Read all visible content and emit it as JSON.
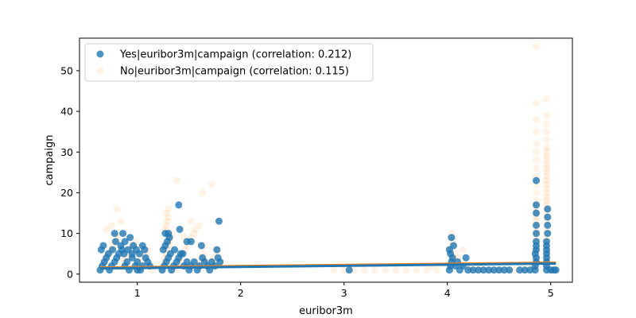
{
  "chart_data": {
    "type": "scatter",
    "xlabel": "euribor3m",
    "ylabel": "campaign",
    "xlim": [
      0.44,
      5.21
    ],
    "ylim": [
      -2.0,
      58.0
    ],
    "x_ticks": [
      1,
      2,
      3,
      4,
      5
    ],
    "y_ticks": [
      0,
      10,
      20,
      30,
      40,
      50
    ],
    "legend_position": "top-left",
    "grid": false,
    "series": [
      {
        "name": "Yes|euribor3m|campaign (correlation: 0.212)",
        "color": "#1f77b4",
        "opacity": 0.8,
        "points": [
          [
            0.64,
            1
          ],
          [
            0.66,
            2
          ],
          [
            0.68,
            3
          ],
          [
            0.7,
            4
          ],
          [
            0.72,
            5
          ],
          [
            0.65,
            6
          ],
          [
            0.67,
            7
          ],
          [
            0.73,
            1
          ],
          [
            0.75,
            2
          ],
          [
            0.78,
            3
          ],
          [
            0.8,
            4
          ],
          [
            0.82,
            5
          ],
          [
            0.85,
            6
          ],
          [
            0.88,
            2
          ],
          [
            0.9,
            3
          ],
          [
            0.92,
            1
          ],
          [
            0.95,
            4
          ],
          [
            0.98,
            2
          ],
          [
            1.0,
            3
          ],
          [
            1.03,
            1
          ],
          [
            1.05,
            2
          ],
          [
            1.08,
            4
          ],
          [
            0.76,
            6
          ],
          [
            0.79,
            8
          ],
          [
            0.84,
            7
          ],
          [
            0.87,
            5
          ],
          [
            0.91,
            6
          ],
          [
            0.95,
            5
          ],
          [
            0.78,
            10
          ],
          [
            0.86,
            10
          ],
          [
            0.88,
            8
          ],
          [
            0.93,
            9
          ],
          [
            0.96,
            7
          ],
          [
            0.99,
            6
          ],
          [
            1.02,
            5
          ],
          [
            1.05,
            7
          ],
          [
            1.07,
            6
          ],
          [
            1.1,
            3
          ],
          [
            1.12,
            2
          ],
          [
            1.0,
            1
          ],
          [
            1.24,
            1
          ],
          [
            1.26,
            2
          ],
          [
            1.28,
            3
          ],
          [
            1.3,
            4
          ],
          [
            1.32,
            5
          ],
          [
            1.25,
            6
          ],
          [
            1.27,
            7
          ],
          [
            1.29,
            8
          ],
          [
            1.31,
            9
          ],
          [
            1.27,
            10
          ],
          [
            1.33,
            1
          ],
          [
            1.35,
            2
          ],
          [
            1.38,
            3
          ],
          [
            1.4,
            4
          ],
          [
            1.42,
            5
          ],
          [
            1.45,
            2
          ],
          [
            1.48,
            3
          ],
          [
            1.5,
            1
          ],
          [
            1.52,
            2
          ],
          [
            1.55,
            3
          ],
          [
            1.58,
            1
          ],
          [
            1.6,
            2
          ],
          [
            1.63,
            4
          ],
          [
            1.65,
            3
          ],
          [
            1.68,
            2
          ],
          [
            1.7,
            1
          ],
          [
            1.72,
            3
          ],
          [
            1.75,
            2
          ],
          [
            1.78,
            4
          ],
          [
            1.8,
            3
          ],
          [
            1.4,
            17
          ],
          [
            1.41,
            11
          ],
          [
            1.48,
            8
          ],
          [
            1.52,
            8
          ],
          [
            1.79,
            13
          ],
          [
            1.77,
            6
          ],
          [
            1.62,
            7
          ],
          [
            1.3,
            10
          ],
          [
            1.36,
            6
          ],
          [
            1.44,
            5
          ],
          [
            3.05,
            1
          ],
          [
            4.02,
            1
          ],
          [
            4.03,
            2
          ],
          [
            4.04,
            3
          ],
          [
            4.05,
            4
          ],
          [
            4.03,
            5
          ],
          [
            4.02,
            6
          ],
          [
            4.04,
            9
          ],
          [
            4.06,
            7
          ],
          [
            4.08,
            2
          ],
          [
            4.1,
            3
          ],
          [
            4.12,
            1
          ],
          [
            4.15,
            2
          ],
          [
            4.18,
            4
          ],
          [
            4.2,
            1
          ],
          [
            4.25,
            1
          ],
          [
            4.3,
            1
          ],
          [
            4.35,
            1
          ],
          [
            4.4,
            1
          ],
          [
            4.45,
            1
          ],
          [
            4.5,
            1
          ],
          [
            4.55,
            1
          ],
          [
            4.6,
            1
          ],
          [
            4.7,
            1
          ],
          [
            4.75,
            1
          ],
          [
            4.8,
            1
          ],
          [
            4.85,
            1
          ],
          [
            4.85,
            2
          ],
          [
            4.86,
            3
          ],
          [
            4.86,
            4
          ],
          [
            4.85,
            5
          ],
          [
            4.86,
            6
          ],
          [
            4.86,
            7
          ],
          [
            4.86,
            8
          ],
          [
            4.86,
            10
          ],
          [
            4.86,
            12
          ],
          [
            4.86,
            15
          ],
          [
            4.86,
            17
          ],
          [
            4.86,
            23
          ],
          [
            4.96,
            1
          ],
          [
            4.96,
            2
          ],
          [
            4.96,
            3
          ],
          [
            4.96,
            4
          ],
          [
            4.96,
            5
          ],
          [
            4.96,
            6
          ],
          [
            4.96,
            7
          ],
          [
            4.96,
            8
          ],
          [
            4.97,
            10
          ],
          [
            4.97,
            12
          ],
          [
            4.97,
            14
          ],
          [
            4.97,
            16
          ],
          [
            5.0,
            1
          ],
          [
            5.03,
            1
          ],
          [
            5.05,
            1
          ]
        ]
      },
      {
        "name": "No|euribor3m|campaign (correlation: 0.115)",
        "color": "#ff7f0e",
        "opacity": 0.1,
        "points": [
          [
            0.64,
            1
          ],
          [
            0.66,
            2
          ],
          [
            0.68,
            3
          ],
          [
            0.7,
            4
          ],
          [
            0.72,
            5
          ],
          [
            0.74,
            6
          ],
          [
            0.76,
            7
          ],
          [
            0.78,
            8
          ],
          [
            0.8,
            9
          ],
          [
            0.82,
            10
          ],
          [
            0.7,
            11
          ],
          [
            0.75,
            12
          ],
          [
            0.84,
            13
          ],
          [
            0.86,
            2
          ],
          [
            0.88,
            3
          ],
          [
            0.9,
            4
          ],
          [
            0.92,
            5
          ],
          [
            0.94,
            6
          ],
          [
            0.96,
            7
          ],
          [
            0.98,
            8
          ],
          [
            0.8,
            16
          ],
          [
            1.0,
            1
          ],
          [
            1.02,
            2
          ],
          [
            1.04,
            3
          ],
          [
            1.06,
            4
          ],
          [
            1.08,
            5
          ],
          [
            1.1,
            6
          ],
          [
            1.12,
            2
          ],
          [
            1.14,
            1
          ],
          [
            0.85,
            4
          ],
          [
            1.24,
            1
          ],
          [
            1.25,
            2
          ],
          [
            1.26,
            3
          ],
          [
            1.27,
            4
          ],
          [
            1.28,
            5
          ],
          [
            1.29,
            6
          ],
          [
            1.3,
            7
          ],
          [
            1.31,
            8
          ],
          [
            1.32,
            9
          ],
          [
            1.33,
            10
          ],
          [
            1.27,
            11
          ],
          [
            1.28,
            12
          ],
          [
            1.29,
            13
          ],
          [
            1.3,
            14
          ],
          [
            1.28,
            15
          ],
          [
            1.3,
            16
          ],
          [
            1.35,
            1
          ],
          [
            1.37,
            2
          ],
          [
            1.4,
            3
          ],
          [
            1.42,
            4
          ],
          [
            1.44,
            5
          ],
          [
            1.46,
            6
          ],
          [
            1.48,
            7
          ],
          [
            1.5,
            8
          ],
          [
            1.52,
            9
          ],
          [
            1.55,
            10
          ],
          [
            1.38,
            23
          ],
          [
            1.63,
            20
          ],
          [
            1.72,
            22
          ],
          [
            1.56,
            11
          ],
          [
            1.58,
            3
          ],
          [
            1.6,
            2
          ],
          [
            1.62,
            4
          ],
          [
            1.64,
            5
          ],
          [
            1.66,
            3
          ],
          [
            1.68,
            2
          ],
          [
            1.7,
            1
          ],
          [
            1.72,
            3
          ],
          [
            1.74,
            4
          ],
          [
            1.76,
            2
          ],
          [
            1.78,
            5
          ],
          [
            1.8,
            3
          ],
          [
            1.65,
            7
          ],
          [
            1.75,
            6
          ],
          [
            1.52,
            13
          ],
          [
            1.45,
            9
          ],
          [
            1.6,
            12
          ],
          [
            2.9,
            1
          ],
          [
            3.0,
            1
          ],
          [
            3.05,
            1
          ],
          [
            3.1,
            1
          ],
          [
            3.2,
            1
          ],
          [
            3.3,
            1
          ],
          [
            3.4,
            1
          ],
          [
            3.5,
            1
          ],
          [
            3.6,
            1
          ],
          [
            3.7,
            1
          ],
          [
            3.8,
            1
          ],
          [
            3.85,
            2
          ],
          [
            3.9,
            1
          ],
          [
            4.02,
            1
          ],
          [
            4.03,
            2
          ],
          [
            4.04,
            3
          ],
          [
            4.05,
            4
          ],
          [
            4.03,
            5
          ],
          [
            4.02,
            6
          ],
          [
            4.04,
            7
          ],
          [
            4.05,
            8
          ],
          [
            4.03,
            9
          ],
          [
            4.04,
            10
          ],
          [
            4.06,
            3
          ],
          [
            4.08,
            5
          ],
          [
            4.1,
            4
          ],
          [
            4.12,
            2
          ],
          [
            4.15,
            6
          ],
          [
            4.18,
            3
          ],
          [
            4.2,
            2
          ],
          [
            4.22,
            1
          ],
          [
            4.25,
            1
          ],
          [
            4.3,
            1
          ],
          [
            4.35,
            1
          ],
          [
            4.4,
            1
          ],
          [
            4.45,
            1
          ],
          [
            4.5,
            1
          ],
          [
            4.55,
            1
          ],
          [
            4.6,
            1
          ],
          [
            4.65,
            1
          ],
          [
            4.7,
            1
          ],
          [
            4.75,
            1
          ],
          [
            4.8,
            1
          ],
          [
            4.85,
            1
          ],
          [
            4.85,
            2
          ],
          [
            4.85,
            3
          ],
          [
            4.86,
            4
          ],
          [
            4.86,
            5
          ],
          [
            4.86,
            6
          ],
          [
            4.86,
            7
          ],
          [
            4.86,
            8
          ],
          [
            4.86,
            9
          ],
          [
            4.86,
            10
          ],
          [
            4.86,
            11
          ],
          [
            4.86,
            12
          ],
          [
            4.86,
            13
          ],
          [
            4.86,
            14
          ],
          [
            4.86,
            15
          ],
          [
            4.86,
            16
          ],
          [
            4.86,
            17
          ],
          [
            4.86,
            18
          ],
          [
            4.86,
            20
          ],
          [
            4.86,
            22
          ],
          [
            4.86,
            24
          ],
          [
            4.86,
            26
          ],
          [
            4.86,
            28
          ],
          [
            4.86,
            30
          ],
          [
            4.86,
            32
          ],
          [
            4.86,
            35
          ],
          [
            4.86,
            38
          ],
          [
            4.86,
            42
          ],
          [
            4.86,
            56
          ],
          [
            4.96,
            1
          ],
          [
            4.96,
            2
          ],
          [
            4.96,
            3
          ],
          [
            4.96,
            4
          ],
          [
            4.96,
            5
          ],
          [
            4.96,
            6
          ],
          [
            4.96,
            7
          ],
          [
            4.96,
            8
          ],
          [
            4.96,
            9
          ],
          [
            4.96,
            10
          ],
          [
            4.96,
            11
          ],
          [
            4.96,
            12
          ],
          [
            4.96,
            13
          ],
          [
            4.96,
            14
          ],
          [
            4.96,
            15
          ],
          [
            4.96,
            16
          ],
          [
            4.96,
            17
          ],
          [
            4.96,
            18
          ],
          [
            4.96,
            19
          ],
          [
            4.96,
            20
          ],
          [
            4.96,
            21
          ],
          [
            4.96,
            22
          ],
          [
            4.96,
            23
          ],
          [
            4.96,
            24
          ],
          [
            4.96,
            25
          ],
          [
            4.96,
            26
          ],
          [
            4.96,
            27
          ],
          [
            4.96,
            28
          ],
          [
            4.96,
            29
          ],
          [
            4.96,
            30
          ],
          [
            4.96,
            31
          ],
          [
            4.96,
            33
          ],
          [
            4.96,
            35
          ],
          [
            4.96,
            37
          ],
          [
            4.96,
            39
          ],
          [
            4.96,
            43
          ],
          [
            5.0,
            1
          ],
          [
            5.02,
            1
          ],
          [
            5.04,
            1
          ],
          [
            5.05,
            1
          ]
        ]
      }
    ],
    "trendlines": [
      {
        "series": "No|euribor3m|campaign (correlation: 0.115)",
        "color": "#ff7f0e",
        "x": [
          0.64,
          5.05
        ],
        "y": [
          1.6,
          2.8
        ]
      },
      {
        "series": "Yes|euribor3m|campaign (correlation: 0.212)",
        "color": "#1f77b4",
        "x": [
          0.64,
          5.05
        ],
        "y": [
          1.4,
          2.6
        ]
      }
    ]
  }
}
